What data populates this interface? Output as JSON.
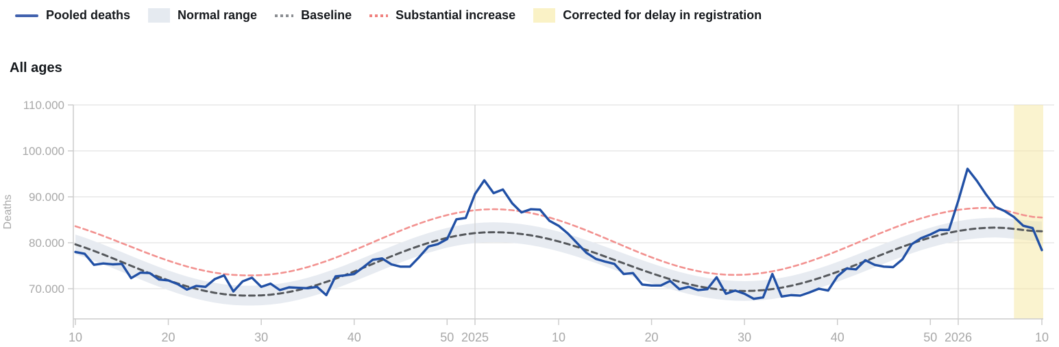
{
  "title": "All ages",
  "legend": {
    "items": [
      {
        "label": "Pooled deaths",
        "marker": "line",
        "color": "#4262ae"
      },
      {
        "label": "Normal range",
        "marker": "area",
        "color": "#e5eaf0"
      },
      {
        "label": "Baseline",
        "marker": "dots",
        "color": "#8b8e92"
      },
      {
        "label": "Substantial increase",
        "marker": "dots-red",
        "color": "#f0827f"
      },
      {
        "label": "Corrected for delay in registration",
        "marker": "area-yellow",
        "color": "#faf2c6"
      }
    ]
  },
  "colors": {
    "pooled": "#2150a5",
    "normal_range": "#e7ebf1",
    "baseline": "#55585c",
    "substantial": "#f2918f",
    "corrected": "#f6e8a0",
    "grid": "#e2e2e2",
    "year_grid": "#d4d4d4",
    "axis": "#cccccc",
    "tick_text": "#a8a8a8"
  },
  "chart_data": {
    "type": "line",
    "title": "All ages",
    "xlabel": "",
    "ylabel": "Deaths",
    "x_unit": "ISO week, 2024-W10 through 2026-W10 (105 weekly points)",
    "ylim": [
      63400,
      110000
    ],
    "grid": true,
    "legend_position": "top-left",
    "yticks": [
      {
        "value": 70000,
        "label": "70.000"
      },
      {
        "value": 80000,
        "label": "80.000"
      },
      {
        "value": 90000,
        "label": "90.000"
      },
      {
        "value": 100000,
        "label": "100.000"
      },
      {
        "value": 110000,
        "label": "110.000"
      }
    ],
    "xticks": [
      {
        "index": 0,
        "label": "10",
        "year_boundary": false
      },
      {
        "index": 10,
        "label": "20",
        "year_boundary": false
      },
      {
        "index": 20,
        "label": "30",
        "year_boundary": false
      },
      {
        "index": 30,
        "label": "40",
        "year_boundary": false
      },
      {
        "index": 40,
        "label": "50",
        "year_boundary": false
      },
      {
        "index": 43,
        "label": "2025",
        "year_boundary": true
      },
      {
        "index": 52,
        "label": "10",
        "year_boundary": false
      },
      {
        "index": 62,
        "label": "20",
        "year_boundary": false
      },
      {
        "index": 72,
        "label": "30",
        "year_boundary": false
      },
      {
        "index": 82,
        "label": "40",
        "year_boundary": false
      },
      {
        "index": 92,
        "label": "50",
        "year_boundary": false
      },
      {
        "index": 95,
        "label": "2026",
        "year_boundary": true
      },
      {
        "index": 104,
        "label": "10",
        "year_boundary": false
      }
    ],
    "series": [
      {
        "name": "Pooled deaths",
        "style": "solid",
        "values": [
          78000,
          77600,
          75200,
          75500,
          75300,
          75400,
          72300,
          73500,
          73400,
          72000,
          71800,
          71000,
          69800,
          70600,
          70400,
          72100,
          72900,
          69400,
          71600,
          72400,
          70400,
          71100,
          69700,
          70300,
          70200,
          70100,
          70400,
          68600,
          72700,
          72900,
          73200,
          74700,
          76300,
          76600,
          75300,
          74800,
          74800,
          76900,
          79200,
          79700,
          80800,
          85100,
          85400,
          90600,
          93600,
          90800,
          91600,
          88600,
          86600,
          87300,
          87200,
          84800,
          83700,
          82000,
          79900,
          77800,
          76500,
          75900,
          75400,
          73200,
          73400,
          70900,
          70700,
          70700,
          71700,
          69900,
          70400,
          69700,
          69900,
          72500,
          68900,
          69600,
          68900,
          67800,
          68100,
          73200,
          68300,
          68600,
          68500,
          69200,
          70000,
          69600,
          72700,
          74400,
          74200,
          76200,
          75200,
          74800,
          74700,
          76400,
          79700,
          81000,
          81800,
          82800,
          82800,
          89100,
          96100,
          93500,
          90500,
          87800,
          86900,
          85600,
          83700,
          83200,
          78400
        ]
      },
      {
        "name": "Baseline",
        "style": "dashed",
        "values": [
          79650,
          78970,
          78230,
          77450,
          76640,
          75820,
          74980,
          74160,
          73350,
          72570,
          71830,
          71150,
          70520,
          69970,
          69500,
          69110,
          68810,
          68610,
          68510,
          68500,
          68550,
          68700,
          68950,
          69290,
          69720,
          70240,
          70820,
          71480,
          72190,
          72950,
          73750,
          74570,
          75400,
          76230,
          77050,
          77850,
          78610,
          79320,
          79980,
          80560,
          81080,
          81510,
          81850,
          82100,
          82250,
          82300,
          82260,
          82130,
          81910,
          81620,
          81250,
          80800,
          80290,
          79720,
          79100,
          78430,
          77740,
          77010,
          76270,
          75530,
          74790,
          74060,
          73370,
          72700,
          72080,
          71510,
          71000,
          70550,
          70180,
          69890,
          69670,
          69540,
          69500,
          69550,
          69680,
          69920,
          70230,
          70630,
          71110,
          71670,
          72280,
          72950,
          73670,
          74420,
          75200,
          76000,
          76800,
          77600,
          78380,
          79130,
          79850,
          80520,
          81130,
          81690,
          82170,
          82570,
          82880,
          83110,
          83250,
          83300,
          83220,
          83020,
          82780,
          82580,
          82500
        ]
      },
      {
        "name": "Substantial increase",
        "style": "dashed",
        "values": [
          83600,
          82940,
          82240,
          81490,
          80710,
          79920,
          79120,
          78330,
          77550,
          76800,
          76100,
          75440,
          74840,
          74310,
          73860,
          73480,
          73200,
          73010,
          72910,
          72900,
          72950,
          73110,
          73370,
          73720,
          74170,
          74710,
          75330,
          76010,
          76750,
          77550,
          78380,
          79230,
          80100,
          80970,
          81820,
          82650,
          83450,
          84190,
          84870,
          85490,
          86030,
          86480,
          86830,
          87090,
          87250,
          87300,
          87250,
          87090,
          86840,
          86480,
          86030,
          85500,
          84890,
          84210,
          83470,
          82690,
          81860,
          81010,
          80150,
          79290,
          78440,
          77610,
          76830,
          76090,
          75410,
          74800,
          74270,
          73820,
          73460,
          73210,
          73050,
          73000,
          73050,
          73200,
          73440,
          73780,
          74200,
          74710,
          75290,
          75940,
          76650,
          77410,
          78210,
          79030,
          79880,
          80720,
          81570,
          82390,
          83190,
          83950,
          84660,
          85310,
          85890,
          86400,
          86820,
          87160,
          87400,
          87550,
          87600,
          87460,
          87080,
          86550,
          86030,
          85640,
          85500
        ]
      }
    ],
    "normal_range": {
      "label": "Normal range",
      "halfwidth": 2150
    },
    "corrected_region": {
      "label": "Corrected for delay in registration",
      "start_index": 101,
      "end_index": 104
    }
  }
}
